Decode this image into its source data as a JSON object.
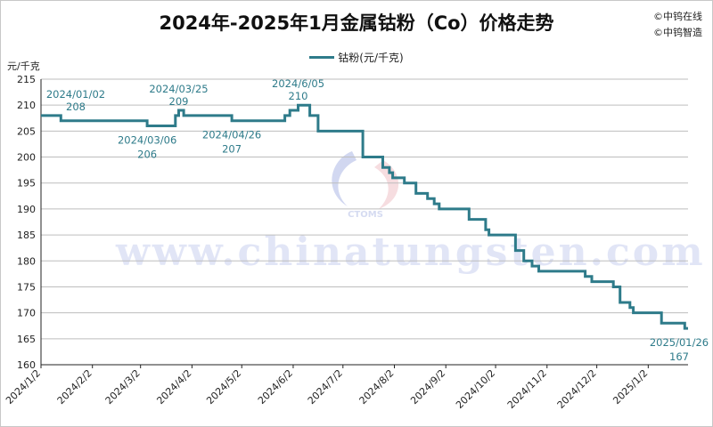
{
  "page": {
    "title": "2024年-2025年1月金属钴粉（Co）价格走势",
    "copyright_lines": [
      "©中钨在线",
      "©中钨智造"
    ],
    "unit": "元/千克",
    "watermark_text": "www.chinatungsten.com",
    "logo_text": "CTOMS"
  },
  "chart_data": {
    "type": "line",
    "title": "2024年-2025年1月金属钴粉（Co）价格走势",
    "xlabel": "",
    "ylabel": "元/千克",
    "ylim": [
      160,
      215
    ],
    "yticks": [
      160,
      165,
      170,
      175,
      180,
      185,
      190,
      195,
      200,
      205,
      210,
      215
    ],
    "xticks": [
      "2024/1/2",
      "2024/2/2",
      "2024/3/2",
      "2024/4/2",
      "2024/5/2",
      "2024/6/2",
      "2024/7/2",
      "2024/8/2",
      "2024/9/2",
      "2024/10/2",
      "2024/11/2",
      "2024/12/2",
      "2025/1/2"
    ],
    "xlim": [
      "2024-01-02",
      "2025-01-26"
    ],
    "grid": "horizontal",
    "legend_position": "top-center",
    "line_color": "#2e7b8a",
    "series": [
      {
        "name": "钴粉(元/千克)",
        "points": [
          [
            "2024-01-02",
            208
          ],
          [
            "2024-01-12",
            208
          ],
          [
            "2024-01-14",
            207
          ],
          [
            "2024-03-06",
            206
          ],
          [
            "2024-03-23",
            208
          ],
          [
            "2024-03-25",
            209
          ],
          [
            "2024-03-28",
            208
          ],
          [
            "2024-04-26",
            207
          ],
          [
            "2024-05-28",
            208
          ],
          [
            "2024-05-31",
            209
          ],
          [
            "2024-06-05",
            210
          ],
          [
            "2024-06-12",
            208
          ],
          [
            "2024-06-17",
            205
          ],
          [
            "2024-06-27",
            205
          ],
          [
            "2024-07-12",
            205
          ],
          [
            "2024-07-14",
            200
          ],
          [
            "2024-07-26",
            198
          ],
          [
            "2024-07-30",
            197
          ],
          [
            "2024-08-01",
            196
          ],
          [
            "2024-08-08",
            195
          ],
          [
            "2024-08-15",
            193
          ],
          [
            "2024-08-22",
            192
          ],
          [
            "2024-08-26",
            191
          ],
          [
            "2024-08-29",
            190
          ],
          [
            "2024-09-16",
            188
          ],
          [
            "2024-09-26",
            186
          ],
          [
            "2024-09-28",
            185
          ],
          [
            "2024-10-14",
            182
          ],
          [
            "2024-10-19",
            180
          ],
          [
            "2024-10-24",
            179
          ],
          [
            "2024-10-28",
            178
          ],
          [
            "2024-11-25",
            177
          ],
          [
            "2024-11-29",
            176
          ],
          [
            "2024-12-12",
            175
          ],
          [
            "2024-12-16",
            172
          ],
          [
            "2024-12-22",
            171
          ],
          [
            "2024-12-24",
            170
          ],
          [
            "2025-01-10",
            168
          ],
          [
            "2025-01-24",
            167
          ],
          [
            "2025-01-26",
            167
          ]
        ]
      }
    ],
    "annotations": [
      {
        "date_label": "2024/01/02",
        "value_label": "208",
        "x": "2024-01-02",
        "y": 208,
        "place": "above"
      },
      {
        "date_label": "2024/03/06",
        "value_label": "206",
        "x": "2024-03-06",
        "y": 206,
        "place": "below"
      },
      {
        "date_label": "2024/03/25",
        "value_label": "209",
        "x": "2024-03-25",
        "y": 209,
        "place": "above"
      },
      {
        "date_label": "2024/04/26",
        "value_label": "207",
        "x": "2024-04-26",
        "y": 207,
        "place": "below"
      },
      {
        "date_label": "2024/6/05",
        "value_label": "210",
        "x": "2024-06-05",
        "y": 210,
        "place": "above"
      },
      {
        "date_label": "2025/01/26",
        "value_label": "167",
        "x": "2025-01-26",
        "y": 167,
        "place": "below"
      }
    ]
  }
}
